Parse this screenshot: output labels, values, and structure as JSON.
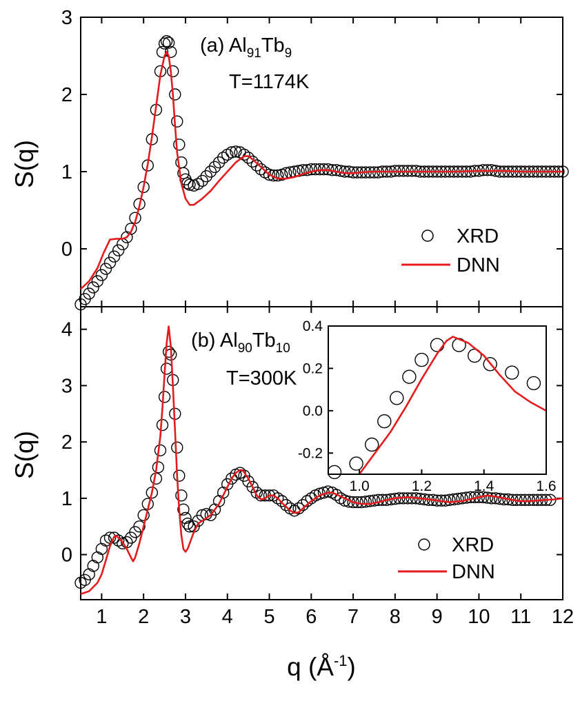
{
  "chart_data": [
    {
      "type": "line",
      "panel": "(a)",
      "annotation": {
        "prefix": "(a) Al",
        "sub1": "91",
        "mid": "Tb",
        "sub2": "9",
        "temperature": "T=1174K"
      },
      "ylabel": "S(q)",
      "xlim": [
        0.5,
        12
      ],
      "ylim": [
        -0.75,
        3
      ],
      "yticks": [
        0,
        1,
        2,
        3
      ],
      "series": [
        {
          "name": "XRD",
          "style": "open-circles",
          "color": "#000000",
          "x": [
            0.5,
            0.6,
            0.7,
            0.8,
            0.9,
            1.0,
            1.1,
            1.2,
            1.3,
            1.4,
            1.5,
            1.6,
            1.7,
            1.8,
            1.9,
            2.0,
            2.1,
            2.2,
            2.3,
            2.4,
            2.45,
            2.5,
            2.55,
            2.6,
            2.65,
            2.7,
            2.75,
            2.8,
            2.85,
            2.9,
            2.95,
            3.0,
            3.05,
            3.1,
            3.2,
            3.3,
            3.4,
            3.5,
            3.6,
            3.7,
            3.8,
            3.9,
            4.0,
            4.1,
            4.2,
            4.3,
            4.4,
            4.5,
            4.6,
            4.7,
            4.8,
            4.9,
            5.0,
            5.1,
            5.2,
            5.3,
            5.4,
            5.5,
            5.6,
            5.7,
            5.8,
            5.9,
            6.0,
            6.1,
            6.2,
            6.3,
            6.4,
            6.5,
            6.6,
            6.7,
            6.8,
            6.9,
            7.0,
            7.1,
            7.2,
            7.3,
            7.4,
            7.5,
            7.6,
            7.7,
            7.8,
            7.9,
            8.0,
            8.1,
            8.2,
            8.3,
            8.4,
            8.5,
            8.6,
            8.7,
            8.8,
            8.9,
            9.0,
            9.1,
            9.2,
            9.3,
            9.4,
            9.5,
            9.6,
            9.7,
            9.8,
            9.9,
            10.0,
            10.1,
            10.2,
            10.3,
            10.4,
            10.5,
            10.6,
            10.7,
            10.8,
            10.9,
            11.0,
            11.1,
            11.2,
            11.3,
            11.4,
            11.5,
            11.6,
            11.7,
            11.8,
            11.9,
            12.0
          ],
          "y": [
            -0.72,
            -0.65,
            -0.58,
            -0.5,
            -0.42,
            -0.34,
            -0.26,
            -0.18,
            -0.1,
            -0.02,
            0.06,
            0.15,
            0.26,
            0.4,
            0.58,
            0.8,
            1.08,
            1.42,
            1.8,
            2.3,
            2.55,
            2.66,
            2.69,
            2.67,
            2.55,
            2.3,
            2.0,
            1.65,
            1.35,
            1.12,
            0.98,
            0.9,
            0.85,
            0.83,
            0.82,
            0.84,
            0.88,
            0.94,
            1.0,
            1.06,
            1.12,
            1.18,
            1.22,
            1.25,
            1.26,
            1.25,
            1.22,
            1.18,
            1.13,
            1.08,
            1.03,
            0.99,
            0.96,
            0.95,
            0.95,
            0.96,
            0.98,
            0.99,
            1.0,
            1.01,
            1.02,
            1.02,
            1.03,
            1.03,
            1.03,
            1.03,
            1.03,
            1.02,
            1.02,
            1.01,
            1.0,
            1.0,
            0.99,
            0.99,
            0.99,
            0.99,
            0.99,
            0.99,
            0.99,
            1.0,
            1.0,
            1.0,
            1.01,
            1.01,
            1.01,
            1.01,
            1.01,
            1.01,
            1.0,
            1.0,
            1.0,
            1.0,
            1.0,
            1.0,
            1.0,
            1.0,
            1.0,
            1.0,
            1.0,
            1.0,
            1.0,
            1.01,
            1.01,
            1.02,
            1.02,
            1.02,
            1.01,
            1.0,
            1.0,
            1.0,
            1.0,
            1.0,
            1.0,
            1.0,
            1.0,
            1.0,
            1.0,
            1.0,
            1.0,
            1.0,
            1.0,
            1.0,
            1.0
          ]
        },
        {
          "name": "DNN",
          "style": "line",
          "color": "#e41a1c",
          "x": [
            0.5,
            0.7,
            0.9,
            1.05,
            1.2,
            1.35,
            1.5,
            1.6,
            1.7,
            1.8,
            1.9,
            2.0,
            2.1,
            2.2,
            2.3,
            2.4,
            2.5,
            2.55,
            2.6,
            2.65,
            2.7,
            2.75,
            2.8,
            2.9,
            3.0,
            3.1,
            3.2,
            3.4,
            3.6,
            3.8,
            4.0,
            4.2,
            4.4,
            4.5,
            4.6,
            4.8,
            5.0,
            5.2,
            5.4,
            5.6,
            5.8,
            6.0,
            6.2,
            6.4,
            6.6,
            6.8,
            7.0,
            7.2,
            7.5,
            8.0,
            8.5,
            9.0,
            9.5,
            10.0,
            10.5,
            11.0,
            11.5,
            12.0
          ],
          "y": [
            -0.52,
            -0.42,
            -0.25,
            -0.05,
            0.12,
            0.13,
            0.13,
            0.15,
            0.22,
            0.35,
            0.55,
            0.8,
            1.1,
            1.45,
            1.85,
            2.25,
            2.5,
            2.55,
            2.5,
            2.3,
            2.0,
            1.6,
            1.25,
            0.85,
            0.65,
            0.57,
            0.57,
            0.65,
            0.75,
            0.88,
            1.0,
            1.12,
            1.2,
            1.2,
            1.16,
            1.06,
            0.96,
            0.91,
            0.91,
            0.93,
            0.97,
            1.0,
            1.02,
            1.02,
            1.0,
            0.98,
            0.98,
            0.99,
            1.0,
            1.0,
            1.0,
            1.0,
            1.0,
            1.01,
            1.01,
            1.0,
            1.0,
            1.0
          ]
        }
      ],
      "legend": {
        "position": "lower-right",
        "entries": [
          "XRD",
          "DNN"
        ]
      }
    },
    {
      "type": "line",
      "panel": "(b)",
      "annotation": {
        "prefix": "(b) Al",
        "sub1": "90",
        "mid": "Tb",
        "sub2": "10",
        "temperature": "T=300K"
      },
      "ylabel": "S(q)",
      "xlabel": {
        "base": "q (Å",
        "sup": "-1",
        "tail": ")"
      },
      "xlim": [
        0.5,
        12
      ],
      "ylim": [
        -0.8,
        4.4
      ],
      "xticks": [
        1,
        2,
        3,
        4,
        5,
        6,
        7,
        8,
        9,
        10,
        11,
        12
      ],
      "yticks": [
        0,
        1,
        2,
        3,
        4
      ],
      "series": [
        {
          "name": "XRD",
          "style": "open-circles",
          "color": "#000000",
          "x": [
            0.5,
            0.6,
            0.7,
            0.8,
            0.9,
            1.0,
            1.1,
            1.2,
            1.3,
            1.4,
            1.5,
            1.6,
            1.7,
            1.8,
            1.9,
            2.0,
            2.1,
            2.2,
            2.3,
            2.35,
            2.4,
            2.45,
            2.5,
            2.55,
            2.6,
            2.65,
            2.7,
            2.75,
            2.8,
            2.85,
            2.9,
            2.95,
            3.0,
            3.05,
            3.1,
            3.2,
            3.3,
            3.4,
            3.5,
            3.6,
            3.7,
            3.8,
            3.9,
            4.0,
            4.1,
            4.2,
            4.3,
            4.4,
            4.5,
            4.6,
            4.7,
            4.8,
            4.9,
            5.0,
            5.1,
            5.2,
            5.3,
            5.4,
            5.5,
            5.6,
            5.7,
            5.8,
            5.9,
            6.0,
            6.1,
            6.2,
            6.3,
            6.4,
            6.5,
            6.6,
            6.7,
            6.8,
            6.9,
            7.0,
            7.1,
            7.2,
            7.3,
            7.4,
            7.5,
            7.6,
            7.7,
            7.8,
            7.9,
            8.0,
            8.1,
            8.2,
            8.3,
            8.4,
            8.5,
            8.6,
            8.7,
            8.8,
            8.9,
            9.0,
            9.1,
            9.2,
            9.3,
            9.4,
            9.5,
            9.6,
            9.7,
            9.8,
            9.9,
            10.0,
            10.1,
            10.2,
            10.3,
            10.4,
            10.5,
            10.6,
            10.7,
            10.8,
            10.9,
            11.0,
            11.1,
            11.2,
            11.3,
            11.4,
            11.5,
            11.6,
            11.7
          ],
          "y": [
            -0.5,
            -0.45,
            -0.35,
            -0.2,
            -0.05,
            0.1,
            0.25,
            0.3,
            0.3,
            0.25,
            0.2,
            0.22,
            0.3,
            0.4,
            0.5,
            0.7,
            0.9,
            1.1,
            1.35,
            1.55,
            1.85,
            2.3,
            2.8,
            3.3,
            3.6,
            3.55,
            3.1,
            2.5,
            1.9,
            1.4,
            1.05,
            0.8,
            0.65,
            0.55,
            0.5,
            0.5,
            0.6,
            0.7,
            0.72,
            0.7,
            0.8,
            0.95,
            1.1,
            1.25,
            1.35,
            1.42,
            1.45,
            1.4,
            1.3,
            1.2,
            1.1,
            1.05,
            1.05,
            1.05,
            1.05,
            1.0,
            0.95,
            0.88,
            0.82,
            0.78,
            0.82,
            0.88,
            0.95,
            1.0,
            1.05,
            1.08,
            1.1,
            1.12,
            1.1,
            1.06,
            1.0,
            0.96,
            0.94,
            0.93,
            0.93,
            0.93,
            0.94,
            0.95,
            0.96,
            0.97,
            0.97,
            0.97,
            0.98,
            0.99,
            1.0,
            1.0,
            1.0,
            1.0,
            1.0,
            0.99,
            0.98,
            0.97,
            0.97,
            0.96,
            0.96,
            0.96,
            0.97,
            0.98,
            0.99,
            1.0,
            1.01,
            1.02,
            1.02,
            1.02,
            1.02,
            1.01,
            1.0,
            1.0,
            0.99,
            0.98,
            0.98,
            0.97,
            0.97,
            0.97,
            0.97,
            0.97,
            0.97,
            0.97,
            0.97,
            0.97,
            0.97
          ]
        },
        {
          "name": "DNN",
          "style": "line",
          "color": "#e41a1c",
          "x": [
            0.5,
            0.7,
            0.9,
            1.0,
            1.1,
            1.2,
            1.3,
            1.35,
            1.4,
            1.5,
            1.6,
            1.7,
            1.75,
            1.8,
            1.9,
            2.0,
            2.1,
            2.2,
            2.3,
            2.4,
            2.45,
            2.5,
            2.55,
            2.6,
            2.65,
            2.7,
            2.75,
            2.8,
            2.85,
            2.9,
            2.95,
            3.0,
            3.05,
            3.1,
            3.2,
            3.3,
            3.4,
            3.6,
            3.8,
            4.0,
            4.1,
            4.2,
            4.3,
            4.35,
            4.4,
            4.5,
            4.6,
            4.7,
            4.8,
            4.9,
            5.0,
            5.1,
            5.2,
            5.3,
            5.4,
            5.5,
            5.6,
            5.7,
            5.8,
            6.0,
            6.2,
            6.4,
            6.5,
            6.6,
            6.8,
            7.0,
            7.2,
            7.4,
            7.6,
            7.8,
            8.0,
            8.3,
            8.6,
            9.0,
            9.3,
            9.6,
            10.0,
            10.2,
            10.4,
            10.6,
            10.8,
            11.0,
            11.2,
            11.4,
            11.6,
            11.8,
            12.0
          ],
          "y": [
            -0.7,
            -0.65,
            -0.5,
            -0.35,
            -0.1,
            0.15,
            0.32,
            0.33,
            0.3,
            0.22,
            0.1,
            -0.05,
            -0.12,
            -0.05,
            0.2,
            0.5,
            0.8,
            1.1,
            1.5,
            2.1,
            2.6,
            3.2,
            3.75,
            4.05,
            3.7,
            3.0,
            2.2,
            1.4,
            0.8,
            0.35,
            0.1,
            0.05,
            0.1,
            0.2,
            0.4,
            0.55,
            0.6,
            0.7,
            0.9,
            1.2,
            1.35,
            1.45,
            1.5,
            1.5,
            1.46,
            1.35,
            1.2,
            1.05,
            0.98,
            1.0,
            1.05,
            1.05,
            1.0,
            0.92,
            0.85,
            0.78,
            0.74,
            0.75,
            0.82,
            0.95,
            1.05,
            1.1,
            1.1,
            1.07,
            1.0,
            0.93,
            0.9,
            0.9,
            0.93,
            0.97,
            1.0,
            1.02,
            1.0,
            0.96,
            0.93,
            0.95,
            1.02,
            1.05,
            1.03,
            1.0,
            0.97,
            0.95,
            0.95,
            0.96,
            0.97,
            0.98,
            1.0
          ]
        }
      ],
      "legend": {
        "position": "lower-right",
        "entries": [
          "XRD",
          "DNN"
        ]
      },
      "inset": {
        "xlim": [
          0.9,
          1.6
        ],
        "ylim": [
          -0.3,
          0.4
        ],
        "xticks": [
          "1.0",
          "1.2",
          "1.4",
          "1.6"
        ],
        "yticks": [
          "0.4",
          "0.2",
          "0.0",
          "-0.2"
        ],
        "xrd": {
          "x": [
            0.92,
            0.99,
            1.04,
            1.08,
            1.12,
            1.16,
            1.2,
            1.25,
            1.32,
            1.37,
            1.42,
            1.49,
            1.56
          ],
          "y": [
            -0.29,
            -0.25,
            -0.16,
            -0.05,
            0.06,
            0.16,
            0.24,
            0.31,
            0.31,
            0.26,
            0.22,
            0.18,
            0.13
          ]
        },
        "dnn": {
          "x": [
            1.0,
            1.05,
            1.1,
            1.15,
            1.2,
            1.25,
            1.28,
            1.3,
            1.35,
            1.4,
            1.45,
            1.5,
            1.55,
            1.6
          ],
          "y": [
            -0.3,
            -0.2,
            -0.1,
            0.02,
            0.15,
            0.27,
            0.33,
            0.35,
            0.32,
            0.26,
            0.17,
            0.09,
            0.04,
            0.0
          ]
        }
      }
    }
  ]
}
